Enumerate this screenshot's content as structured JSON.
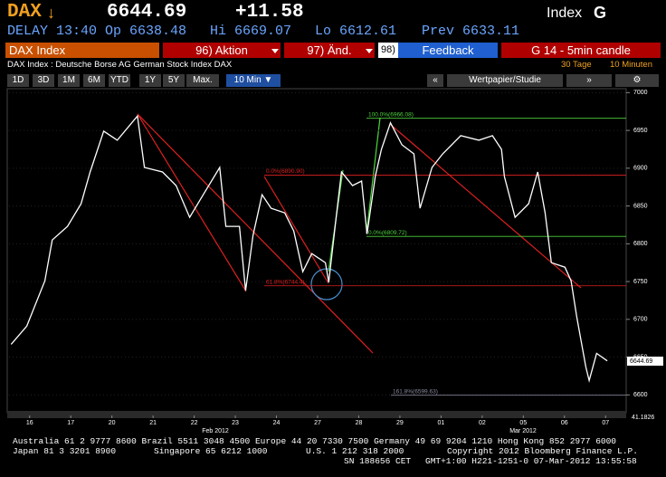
{
  "header": {
    "ticker": "DAX",
    "arrow": "↓",
    "last": "6644.69",
    "change": "+11.58",
    "asset_class": "Index",
    "function_key": "G"
  },
  "quote": {
    "delay": "DELAY 13:40",
    "open": "Op 6638.48",
    "high": "Hi 6669.07",
    "low": "Lo 6612.61",
    "prev": "Prev 6633.11"
  },
  "command_bar": {
    "security": "DAX Index",
    "menu1": "96) Aktion",
    "menu2": "97) Änd.",
    "feedback_num": "98)",
    "feedback": "Feedback",
    "chart_title": "G 14 - 5min candle"
  },
  "description": {
    "text": "DAX Index : Deutsche Borse AG German Stock Index DAX",
    "period": "30 Tage",
    "interval": "10 Minuten"
  },
  "toolbar": {
    "ranges": [
      "1D",
      "3D",
      "1M",
      "6M",
      "YTD",
      "1Y",
      "5Y",
      "Max."
    ],
    "frequency": "10 Min ▼",
    "nav_left": "«",
    "study": "Wertpapier/Studie",
    "nav_right": "»"
  },
  "chart_data": {
    "type": "line",
    "color": "#ffffff",
    "x": [
      -0.45,
      -0.07,
      0.37,
      0.55,
      0.92,
      1.25,
      1.47,
      1.8,
      2.13,
      2.62,
      2.79,
      3.23,
      3.56,
      3.89,
      4.22,
      4.62,
      4.77,
      5.1,
      5.25,
      5.43,
      5.65,
      5.87,
      6.2,
      6.42,
      6.64,
      6.86,
      7.19,
      7.27,
      7.45,
      7.58,
      7.85,
      8.07,
      8.2,
      8.4,
      8.55,
      8.77,
      9.05,
      9.34,
      9.49,
      9.78,
      10.04,
      10.48,
      10.92,
      11.25,
      11.47,
      11.54,
      11.8,
      12.13,
      12.35,
      12.53,
      12.68,
      13.01,
      13.16,
      13.3,
      13.52,
      13.6,
      13.78,
      14.04
    ],
    "values": [
      6667,
      6691,
      6751,
      6805,
      6823,
      6853,
      6895,
      6949,
      6937,
      6969,
      6901,
      6895,
      6877,
      6835,
      6865,
      6901,
      6823,
      6823,
      6738,
      6811,
      6865,
      6847,
      6841,
      6817,
      6763,
      6787,
      6775,
      6749,
      6835,
      6895,
      6877,
      6883,
      6813,
      6889,
      6925,
      6960,
      6931,
      6919,
      6847,
      6901,
      6919,
      6943,
      6937,
      6943,
      6925,
      6889,
      6835,
      6853,
      6895,
      6841,
      6775,
      6769,
      6751,
      6703,
      6637,
      6619,
      6655,
      6645
    ],
    "xlim": [
      -0.5,
      14.5
    ],
    "xticks": [
      {
        "value": 0,
        "label": "16"
      },
      {
        "value": 1,
        "label": "17"
      },
      {
        "value": 2,
        "label": "20"
      },
      {
        "value": 3,
        "label": "21"
      },
      {
        "value": 4,
        "label": "22"
      },
      {
        "value": 5,
        "label": "23"
      },
      {
        "value": 6,
        "label": "24"
      },
      {
        "value": 7,
        "label": "27"
      },
      {
        "value": 8,
        "label": "28"
      },
      {
        "value": 9,
        "label": "29"
      },
      {
        "value": 10,
        "label": "01"
      },
      {
        "value": 11,
        "label": "02"
      },
      {
        "value": 12,
        "label": "05"
      },
      {
        "value": 13,
        "label": "06"
      },
      {
        "value": 14,
        "label": "07"
      }
    ],
    "x_group_labels": [
      "Feb 2012",
      "Mar 2012"
    ],
    "ylim": [
      6580,
      7010
    ],
    "yticks": [
      6600,
      6650,
      6700,
      6750,
      6800,
      6850,
      6900,
      6950,
      7000
    ],
    "grid": true,
    "last_price": 6644.69,
    "volume_axis_label": "41.1826",
    "annotations": [
      {
        "label": "100.0%(6966.08)",
        "value": 6966.08,
        "color": "#4cd43c"
      },
      {
        "label": "0.0%(6890.90)",
        "value": 6890.9,
        "color": "#e02020"
      },
      {
        "label": "0.0%(6809.72)",
        "value": 6809.72,
        "color": "#4cd43c"
      },
      {
        "label": "61.8%(6744.4)",
        "value": 6744.4,
        "color": "#e02020"
      },
      {
        "label": "161.8%(6599.63)",
        "value": 6599.63,
        "color": "#8a8aa0"
      }
    ]
  },
  "footer": {
    "line1": "Australia 61 2 9777 8600 Brazil 5511 3048 4500 Europe 44 20 7330 7500 Germany 49 69 9204 1210 Hong Kong 852 2977 6000",
    "line2": [
      "Japan 81 3 3201 8900",
      "Singapore 65 6212 1000",
      "U.S. 1 212 318 2000",
      "Copyright 2012 Bloomberg Finance L.P."
    ],
    "line3": [
      "SN 188656 CET",
      "GMT+1:00 H221-1251-0 07-Mar-2012 13:55:58"
    ]
  }
}
